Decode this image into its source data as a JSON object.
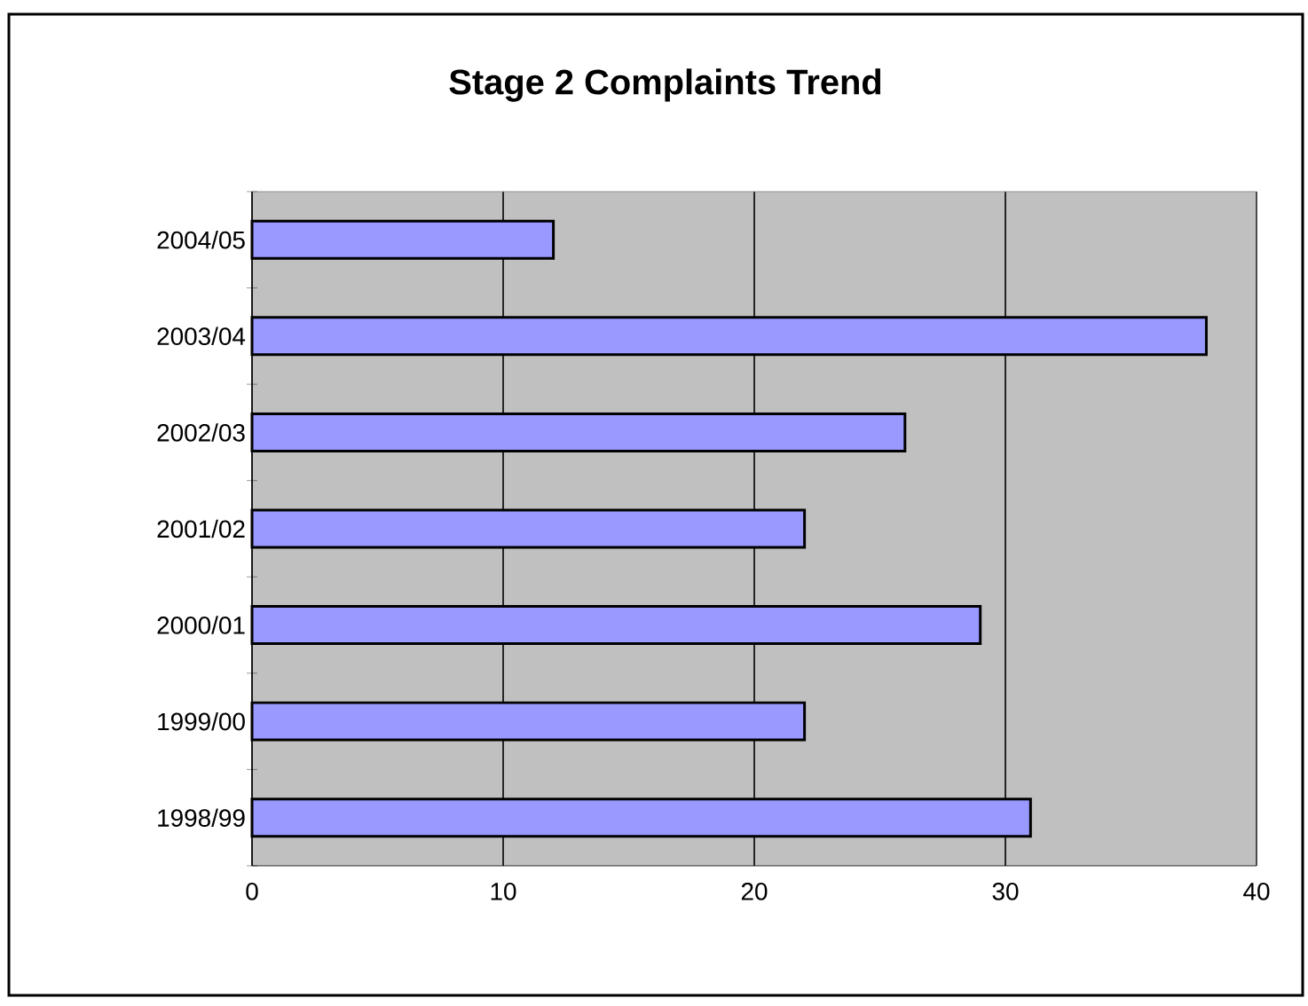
{
  "chart_data": {
    "type": "bar",
    "orientation": "horizontal",
    "title": "Stage 2 Complaints Trend",
    "categories": [
      "2004/05",
      "2003/04",
      "2002/03",
      "2001/02",
      "2000/01",
      "1999/00",
      "1998/99"
    ],
    "values": [
      12,
      38,
      26,
      22,
      29,
      22,
      31
    ],
    "color": "#9999ff",
    "xlim": [
      0,
      40
    ],
    "xticks": [
      0,
      10,
      20,
      30,
      40
    ],
    "grid": "x"
  }
}
